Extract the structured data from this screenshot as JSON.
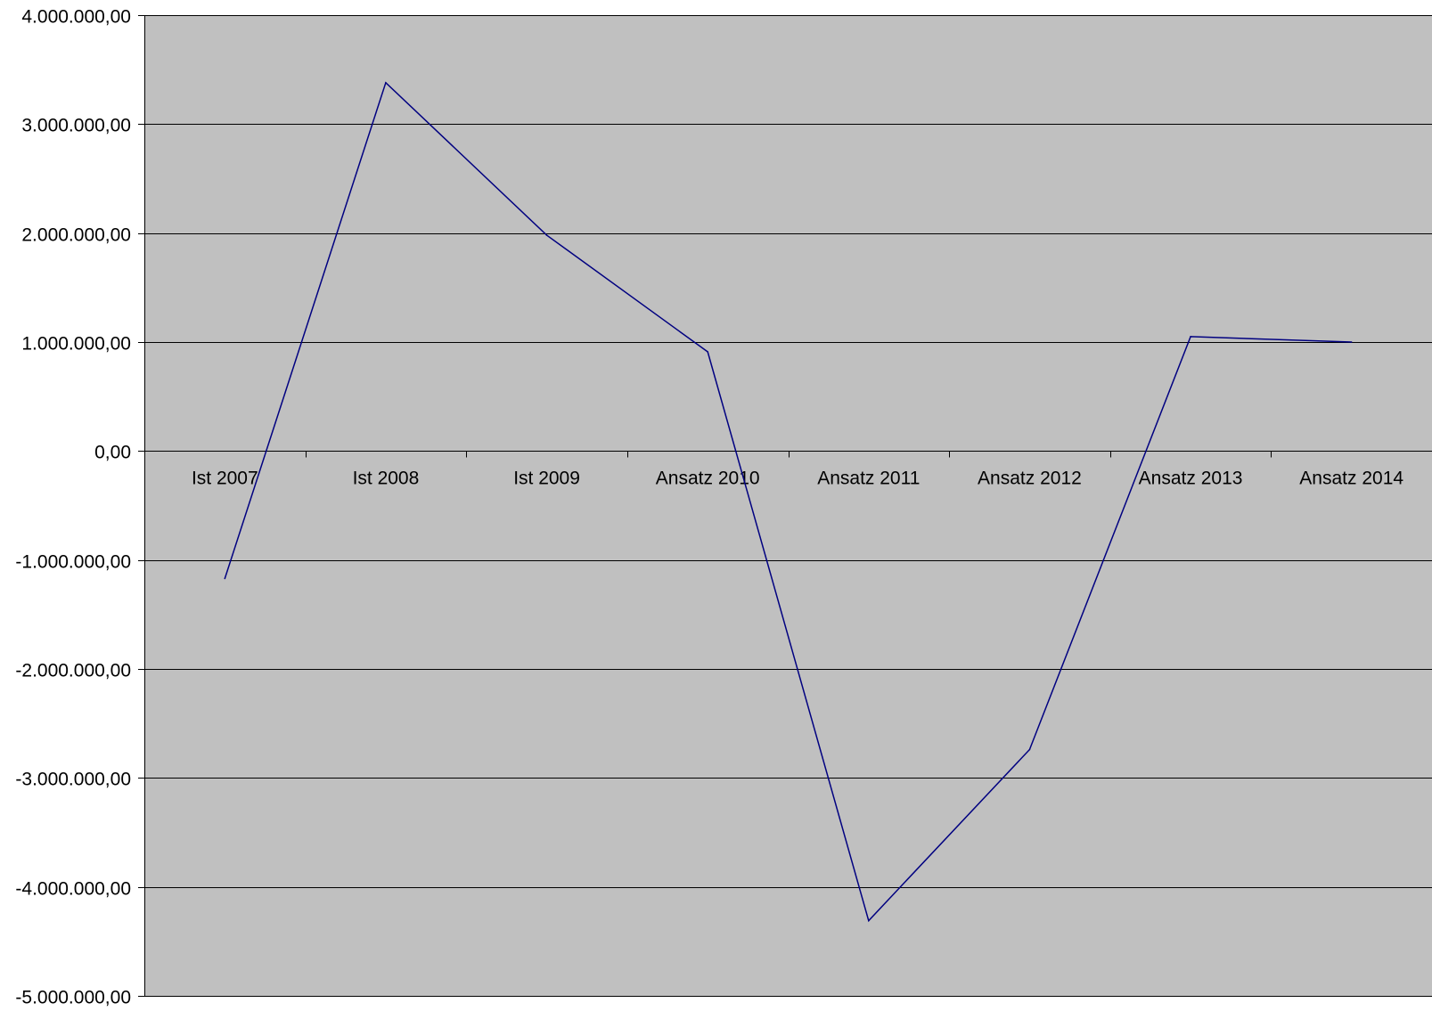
{
  "chart_data": {
    "type": "line",
    "title": "",
    "xlabel": "",
    "ylabel": "",
    "categories": [
      "Ist 2007",
      "Ist 2008",
      "Ist 2009",
      "Ansatz 2010",
      "Ansatz 2011",
      "Ansatz 2012",
      "Ansatz 2013",
      "Ansatz 2014"
    ],
    "series": [
      {
        "values": [
          -1170000,
          3380000,
          1980000,
          910000,
          -4310000,
          -2740000,
          1050000,
          1000000
        ],
        "color": "#000080"
      }
    ],
    "ylim": [
      -5000000,
      4000000
    ],
    "yticks": [
      4000000,
      3000000,
      2000000,
      1000000,
      0,
      -1000000,
      -2000000,
      -3000000,
      -4000000,
      -5000000
    ],
    "ytick_labels": [
      "4.000.000,00",
      "3.000.000,00",
      "2.000.000,00",
      "1.000.000,00",
      "0,00",
      "-1.000.000,00",
      "-2.000.000,00",
      "-3.000.000,00",
      "-4.000.000,00",
      "-5.000.000,00"
    ],
    "grid": true,
    "legend": "none",
    "plot_background": "#c0c0c0",
    "gridline_color": "#000000"
  }
}
